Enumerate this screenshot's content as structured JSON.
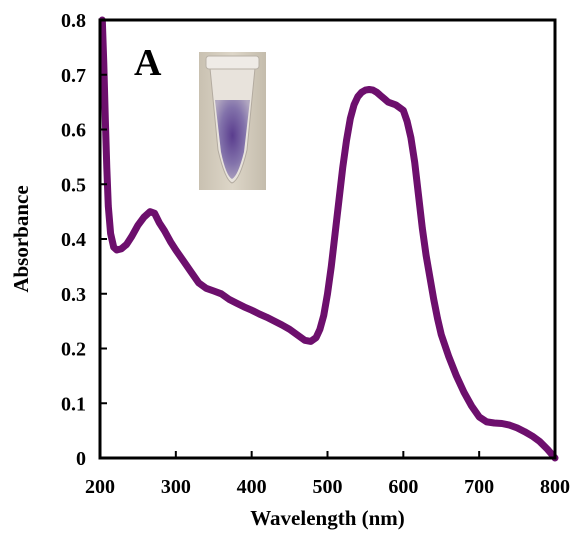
{
  "chart_data": {
    "type": "line",
    "panel_label": "A",
    "xlabel": "Wavelength (nm)",
    "ylabel": "Absorbance",
    "xlim": [
      200,
      800
    ],
    "ylim": [
      0,
      0.8
    ],
    "xticks": [
      200,
      300,
      400,
      500,
      600,
      700,
      800
    ],
    "yticks": [
      0,
      0.1,
      0.2,
      0.3,
      0.4,
      0.5,
      0.6,
      0.7,
      0.8
    ],
    "ytick_labels": [
      "0",
      "0.1",
      "0.2",
      "0.3",
      "0.4",
      "0.5",
      "0.6",
      "0.7",
      "0.8"
    ],
    "grid": false,
    "legend": "none",
    "line_color": "#6d0f6d",
    "inset": "photo of a vial containing a purple solution",
    "series": [
      {
        "x": [
          203,
          205,
          207,
          209,
          211,
          214,
          218,
          222,
          228,
          235,
          242,
          250,
          258,
          266,
          272,
          278,
          285,
          293,
          300,
          310,
          320,
          330,
          340,
          350,
          360,
          370,
          380,
          390,
          400,
          410,
          420,
          430,
          440,
          450,
          460,
          470,
          478,
          485,
          490,
          495,
          500,
          505,
          510,
          515,
          520,
          525,
          530,
          535,
          540,
          545,
          550,
          555,
          560,
          565,
          570,
          575,
          580,
          590,
          600,
          605,
          610,
          615,
          620,
          625,
          630,
          635,
          640,
          645,
          650,
          660,
          670,
          680,
          690,
          700,
          710,
          720,
          730,
          740,
          750,
          760,
          770,
          780,
          790,
          800
        ],
        "y": [
          0.8,
          0.72,
          0.62,
          0.53,
          0.46,
          0.41,
          0.385,
          0.38,
          0.382,
          0.39,
          0.405,
          0.425,
          0.44,
          0.45,
          0.447,
          0.43,
          0.415,
          0.395,
          0.38,
          0.36,
          0.34,
          0.32,
          0.31,
          0.305,
          0.3,
          0.29,
          0.283,
          0.276,
          0.27,
          0.263,
          0.257,
          0.25,
          0.243,
          0.235,
          0.225,
          0.215,
          0.213,
          0.22,
          0.235,
          0.26,
          0.3,
          0.35,
          0.41,
          0.47,
          0.53,
          0.58,
          0.62,
          0.645,
          0.66,
          0.668,
          0.672,
          0.673,
          0.672,
          0.668,
          0.662,
          0.656,
          0.65,
          0.645,
          0.635,
          0.615,
          0.585,
          0.54,
          0.48,
          0.42,
          0.37,
          0.33,
          0.29,
          0.255,
          0.225,
          0.185,
          0.15,
          0.12,
          0.095,
          0.075,
          0.066,
          0.064,
          0.063,
          0.06,
          0.055,
          0.048,
          0.04,
          0.03,
          0.016,
          0.0
        ]
      }
    ]
  }
}
